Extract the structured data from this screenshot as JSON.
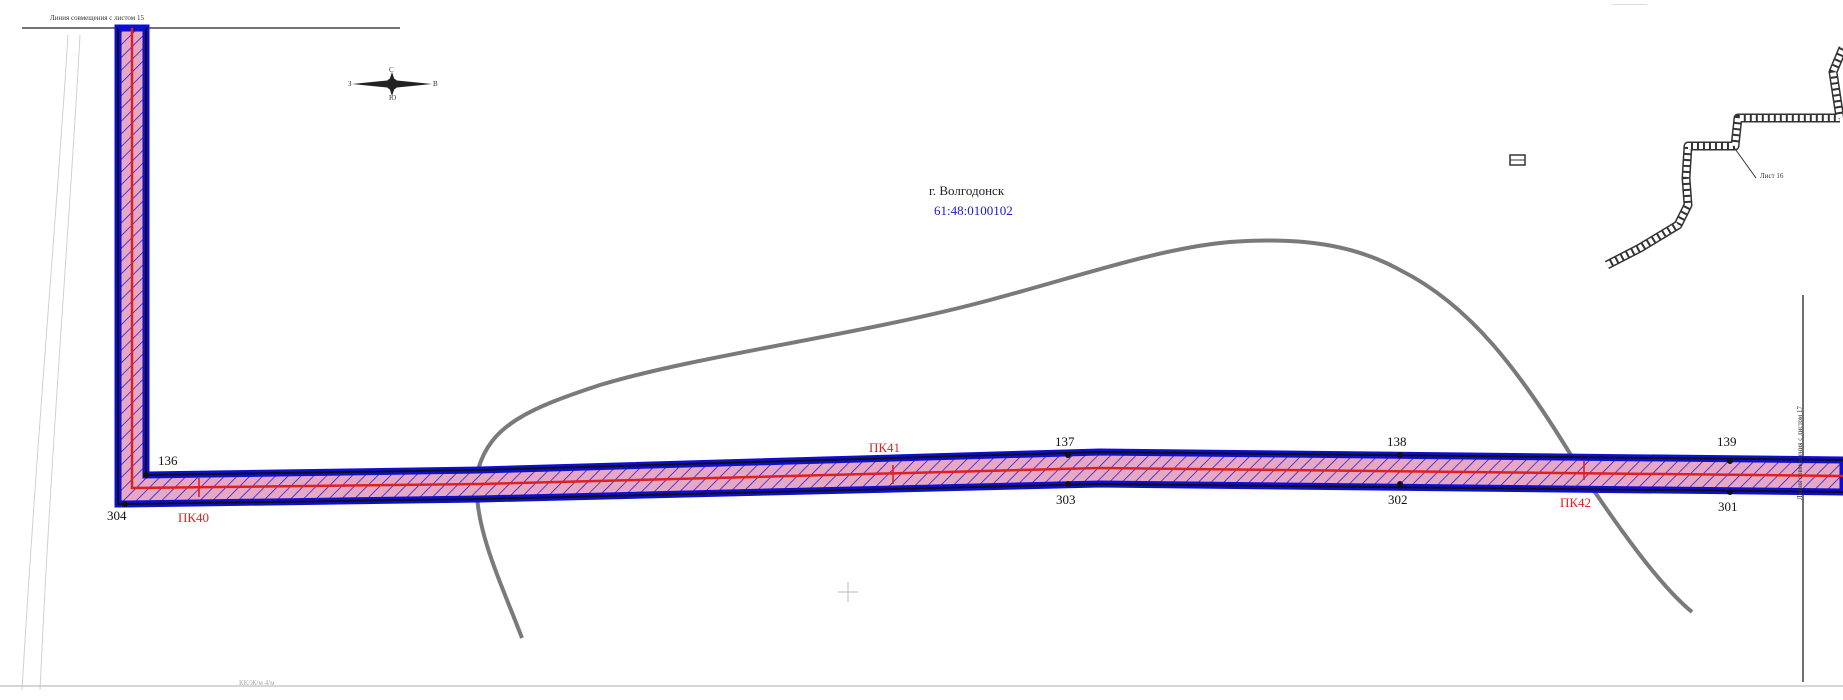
{
  "map": {
    "city_name": "г. Волгодонск",
    "cadastral_block": "61:48:0100102",
    "match_line_top": "Линия совмещения с листом 15",
    "match_line_right": "Линия совмещения с листом 17",
    "inset_sheet_label": "Лист 16",
    "bottom_faint_label": "КК/Ж/м 4/м",
    "top_right_faint_label": "—————",
    "picket_labels": [
      "ПК40",
      "ПК41",
      "ПК42"
    ],
    "points_north": [
      "136",
      "137",
      "138",
      "139"
    ],
    "points_south": [
      "304",
      "303",
      "302",
      "301"
    ],
    "compass": {
      "n": "С",
      "s": "Ю",
      "w": "З",
      "e": "В"
    },
    "colors": {
      "zone_fill": "#0d0dd8",
      "zone_hatch": "#e8a8c4",
      "centerline": "#e02020",
      "boundary_curve": "#7a7a7a",
      "picket_text": "#e02020",
      "cadastral_text": "#1a1ac8"
    }
  }
}
